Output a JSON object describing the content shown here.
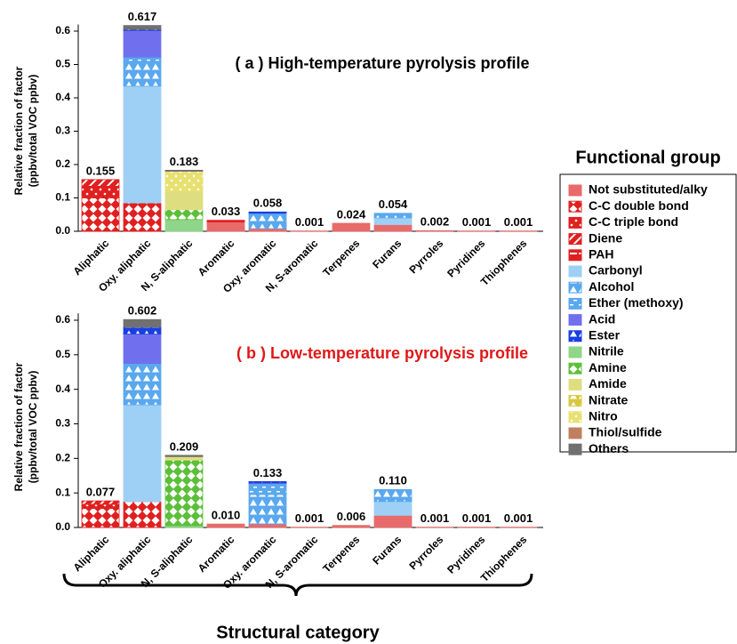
{
  "legend": {
    "title": "Functional group",
    "items": [
      {
        "name": "Not substituted/alky",
        "color": "#e86a6a",
        "pattern": "solid"
      },
      {
        "name": "C-C double bond",
        "color": "#e02020",
        "pattern": "diamond"
      },
      {
        "name": "C-C triple bond",
        "color": "#e02020",
        "pattern": "dots"
      },
      {
        "name": "Diene",
        "color": "#e02020",
        "pattern": "stripes"
      },
      {
        "name": "PAH",
        "color": "#e02020",
        "pattern": "bar"
      },
      {
        "name": "Carbonyl",
        "color": "#9ed0f5",
        "pattern": "solid"
      },
      {
        "name": "Alcohol",
        "color": "#5aa8ee",
        "pattern": "triangle"
      },
      {
        "name": "Ether (methoxy)",
        "color": "#5aa8ee",
        "pattern": "dash"
      },
      {
        "name": "Acid",
        "color": "#7070ee",
        "pattern": "solid"
      },
      {
        "name": "Ester",
        "color": "#1a3fe0",
        "pattern": "triangle"
      },
      {
        "name": "Nitrile",
        "color": "#8fd68a",
        "pattern": "solid"
      },
      {
        "name": "Amine",
        "color": "#5cbf3a",
        "pattern": "diamond"
      },
      {
        "name": "Amide",
        "color": "#dede80",
        "pattern": "solid"
      },
      {
        "name": "Nitrate",
        "color": "#d8c840",
        "pattern": "triangle"
      },
      {
        "name": "Nitro",
        "color": "#e8e070",
        "pattern": "dots"
      },
      {
        "name": "Thiol/sulfide",
        "color": "#c08060",
        "pattern": "solid"
      },
      {
        "name": "Others",
        "color": "#707070",
        "pattern": "solid"
      }
    ]
  },
  "x_label": "Structural category",
  "chart_data": [
    {
      "type": "bar",
      "title": "( a ) High-temperature pyrolysis profile",
      "title_color": "#000000",
      "ylabel": [
        "Relative fraction of factor",
        "(ppbv/total VOC ppbv)"
      ],
      "categories": [
        "Aliphatic",
        "Oxy. aliphatic",
        "N, S-aliphatic",
        "Aromatic",
        "Oxy. aromatic",
        "N, S-aromatic",
        "Terpenes",
        "Furans",
        "Pyrroles",
        "Pyridines",
        "Thiophenes"
      ],
      "totals": [
        0.155,
        0.617,
        0.183,
        0.033,
        0.058,
        0.001,
        0.024,
        0.054,
        0.002,
        0.001,
        0.001
      ],
      "ylim": [
        0,
        0.62
      ],
      "yticks": [
        {
          "value": 0,
          "label": "0.0"
        },
        0.1,
        0.2,
        0.3,
        0.4,
        0.5,
        0.6
      ],
      "series": [
        {
          "values": [
            0,
            0,
            0,
            0.028,
            0.008,
            0.001,
            0.024,
            0.02,
            0.002,
            0.001,
            0.001
          ]
        },
        {
          "values": [
            0.1,
            0.085,
            0,
            0,
            0,
            0,
            0,
            0,
            0,
            0,
            0
          ]
        },
        {
          "values": [
            0.035,
            0,
            0,
            0,
            0,
            0,
            0,
            0,
            0,
            0,
            0
          ]
        },
        {
          "values": [
            0.02,
            0,
            0,
            0,
            0,
            0,
            0,
            0,
            0,
            0,
            0
          ]
        },
        {
          "values": [
            0,
            0,
            0,
            0.005,
            0,
            0,
            0,
            0,
            0,
            0,
            0
          ]
        },
        {
          "values": [
            0,
            0.35,
            0,
            0,
            0,
            0,
            0,
            0.02,
            0,
            0,
            0
          ]
        },
        {
          "values": [
            0,
            0.075,
            0,
            0,
            0.04,
            0,
            0,
            0.008,
            0,
            0,
            0
          ]
        },
        {
          "values": [
            0,
            0.012,
            0,
            0,
            0.006,
            0,
            0,
            0.006,
            0,
            0,
            0
          ]
        },
        {
          "values": [
            0,
            0.08,
            0,
            0,
            0,
            0,
            0,
            0,
            0,
            0,
            0
          ]
        },
        {
          "values": [
            0,
            0.003,
            0,
            0,
            0.004,
            0,
            0,
            0,
            0,
            0,
            0
          ]
        },
        {
          "values": [
            0,
            0,
            0.035,
            0,
            0,
            0,
            0,
            0,
            0,
            0,
            0
          ]
        },
        {
          "values": [
            0,
            0,
            0.03,
            0,
            0,
            0,
            0,
            0,
            0,
            0,
            0
          ]
        },
        {
          "values": [
            0,
            0,
            0.055,
            0,
            0,
            0,
            0,
            0,
            0,
            0,
            0
          ]
        },
        {
          "values": [
            0,
            0,
            0,
            0,
            0,
            0,
            0,
            0,
            0,
            0,
            0
          ]
        },
        {
          "values": [
            0,
            0,
            0.06,
            0,
            0,
            0,
            0,
            0,
            0,
            0,
            0
          ]
        },
        {
          "values": [
            0,
            0,
            0,
            0,
            0,
            0,
            0,
            0,
            0,
            0,
            0
          ]
        },
        {
          "values": [
            0,
            0.012,
            0.003,
            0,
            0,
            0,
            0,
            0,
            0,
            0,
            0
          ]
        }
      ]
    },
    {
      "type": "bar",
      "title": "( b ) Low-temperature pyrolysis profile",
      "title_color": "#e01818",
      "ylabel": [
        "Relative fraction of factor",
        "(ppbv/total VOC ppbv)"
      ],
      "categories": [
        "Aliphatic",
        "Oxy. aliphatic",
        "N, S-aliphatic",
        "Aromatic",
        "Oxy. aromatic",
        "N, S-aromatic",
        "Terpenes",
        "Furans",
        "Pyrroles",
        "Pyridines",
        "Thiophenes"
      ],
      "totals": [
        0.077,
        0.602,
        0.209,
        {
          "value": 0.01,
          "label": "0.010"
        },
        0.133,
        0.001,
        0.006,
        {
          "value": 0.11,
          "label": "0.110"
        },
        0.001,
        0.001,
        0.001
      ],
      "ylim": [
        0,
        0.62
      ],
      "yticks": [
        {
          "value": 0,
          "label": "0.0"
        },
        0.1,
        0.2,
        0.3,
        0.4,
        0.5,
        0.6
      ],
      "series": [
        {
          "values": [
            0,
            0,
            0,
            0.01,
            0.01,
            0.001,
            0.006,
            0.035,
            0.001,
            0.001,
            0.001
          ]
        },
        {
          "values": [
            0.055,
            0.075,
            0,
            0,
            0,
            0,
            0,
            0,
            0,
            0,
            0
          ]
        },
        {
          "values": [
            0.012,
            0,
            0,
            0,
            0,
            0,
            0,
            0,
            0,
            0,
            0
          ]
        },
        {
          "values": [
            0.01,
            0,
            0,
            0,
            0,
            0,
            0,
            0,
            0,
            0,
            0
          ]
        },
        {
          "values": [
            0,
            0,
            0,
            0,
            0,
            0,
            0,
            0,
            0,
            0,
            0
          ]
        },
        {
          "values": [
            0,
            0.28,
            0,
            0,
            0,
            0,
            0,
            0.04,
            0,
            0,
            0
          ]
        },
        {
          "values": [
            0,
            0.12,
            0,
            0,
            0.085,
            0,
            0,
            0.035,
            0,
            0,
            0
          ]
        },
        {
          "values": [
            0,
            0,
            0,
            0,
            0.032,
            0,
            0,
            0,
            0,
            0,
            0
          ]
        },
        {
          "values": [
            0,
            0.085,
            0,
            0,
            0.002,
            0,
            0,
            0,
            0,
            0,
            0
          ]
        },
        {
          "values": [
            0,
            0.02,
            0,
            0,
            0.004,
            0,
            0,
            0,
            0,
            0,
            0
          ]
        },
        {
          "values": [
            0,
            0,
            0.005,
            0,
            0,
            0,
            0,
            0,
            0,
            0,
            0
          ]
        },
        {
          "values": [
            0,
            0,
            0.19,
            0,
            0,
            0,
            0,
            0,
            0,
            0,
            0
          ]
        },
        {
          "values": [
            0,
            0,
            0.01,
            0,
            0,
            0,
            0,
            0,
            0,
            0,
            0
          ]
        },
        {
          "values": [
            0,
            0,
            0,
            0,
            0,
            0,
            0,
            0,
            0,
            0,
            0
          ]
        },
        {
          "values": [
            0,
            0,
            0,
            0,
            0,
            0,
            0,
            0,
            0,
            0,
            0
          ]
        },
        {
          "values": [
            0,
            0,
            0,
            0,
            0,
            0,
            0,
            0,
            0,
            0,
            0
          ]
        },
        {
          "values": [
            0,
            0.022,
            0.004,
            0,
            0,
            0,
            0,
            0,
            0,
            0,
            0
          ]
        }
      ]
    }
  ]
}
